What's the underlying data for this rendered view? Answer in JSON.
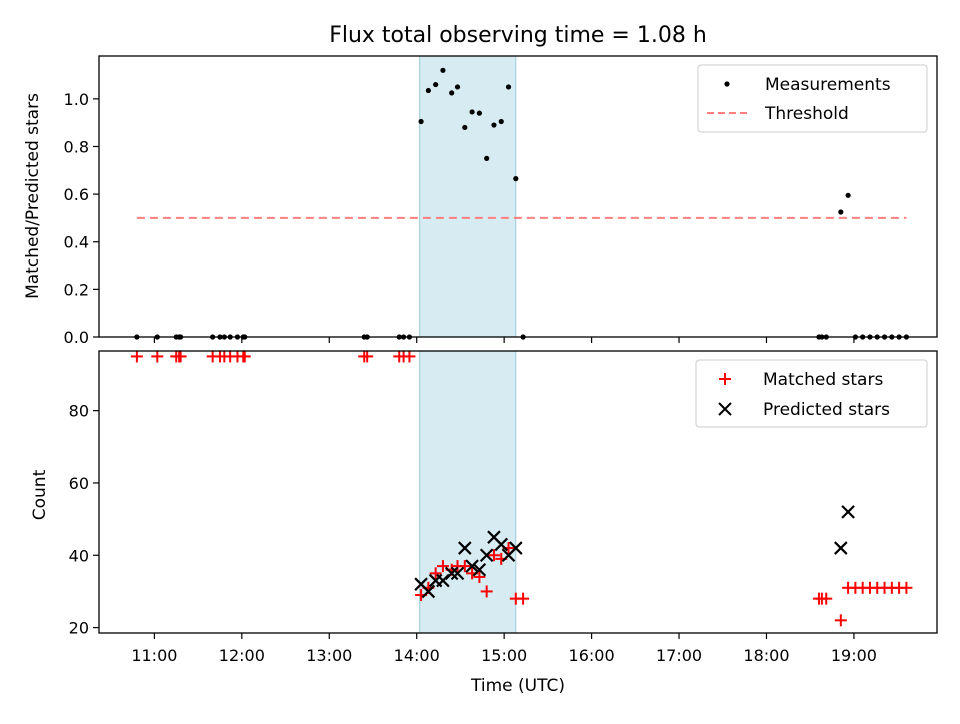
{
  "chart_data": [
    {
      "type": "scatter",
      "title": "Flux total observing time = 1.08 h",
      "xlabel": "",
      "ylabel": "Matched/Predicted stars",
      "xlim": [
        "10:22",
        "19:57"
      ],
      "ylim": [
        0,
        1.18
      ],
      "yticks": [
        0.0,
        0.2,
        0.4,
        0.6,
        0.8,
        1.0
      ],
      "ytick_labels": [
        "0.0",
        "0.2",
        "0.4",
        "0.6",
        "0.8",
        "1.0"
      ],
      "shaded_span": [
        "14:02",
        "15:08"
      ],
      "legend_position": "top-right",
      "series": [
        {
          "name": "Measurements",
          "kind": "points",
          "color": "#000000",
          "x": [
            "10:48",
            "11:02",
            "11:15",
            "11:17",
            "11:18",
            "11:40",
            "11:45",
            "11:48",
            "11:52",
            "11:57",
            "12:01",
            "12:02",
            "13:24",
            "13:26",
            "13:48",
            "13:51",
            "13:55",
            "14:03",
            "14:08",
            "14:13",
            "14:18",
            "14:24",
            "14:28",
            "14:33",
            "14:38",
            "14:43",
            "14:48",
            "14:53",
            "14:58",
            "15:03",
            "15:08",
            "15:13",
            "18:36",
            "18:38",
            "18:41",
            "18:51",
            "18:56",
            "19:01",
            "19:06",
            "19:11",
            "19:16",
            "19:21",
            "19:26",
            "19:31",
            "19:36"
          ],
          "y": [
            0,
            0,
            0,
            0,
            0,
            0,
            0,
            0,
            0,
            0,
            0,
            0,
            0,
            0,
            0,
            0,
            0,
            0.905,
            1.035,
            1.06,
            1.12,
            1.025,
            1.05,
            0.88,
            0.945,
            0.94,
            0.75,
            0.89,
            0.905,
            1.05,
            0.665,
            0,
            0,
            0,
            0,
            0.525,
            0.595,
            0,
            0,
            0,
            0,
            0,
            0,
            0,
            0
          ]
        },
        {
          "name": "Threshold",
          "kind": "dashed-line",
          "color": "#ff7f7f",
          "x": [
            "10:48",
            "19:36"
          ],
          "y": [
            0.5,
            0.5
          ]
        }
      ]
    },
    {
      "type": "scatter",
      "title": "",
      "xlabel": "Time (UTC)",
      "ylabel": "Count",
      "xlim": [
        "10:22",
        "19:57"
      ],
      "ylim": [
        18.5,
        96.5
      ],
      "xticks": [
        "11:00",
        "12:00",
        "13:00",
        "14:00",
        "15:00",
        "16:00",
        "17:00",
        "18:00",
        "19:00"
      ],
      "yticks": [
        20,
        40,
        60,
        80
      ],
      "ytick_labels": [
        "20",
        "40",
        "60",
        "80"
      ],
      "shaded_span": [
        "14:02",
        "15:08"
      ],
      "legend_position": "top-right",
      "series": [
        {
          "name": "Matched stars",
          "marker": "plus",
          "color": "#ff0000",
          "x": [
            "10:48",
            "11:02",
            "11:15",
            "11:17",
            "11:18",
            "11:40",
            "11:45",
            "11:48",
            "11:52",
            "11:57",
            "12:01",
            "12:02",
            "13:24",
            "13:26",
            "13:48",
            "13:51",
            "13:55",
            "14:03",
            "14:08",
            "14:13",
            "14:18",
            "14:24",
            "14:28",
            "14:33",
            "14:38",
            "14:43",
            "14:48",
            "14:53",
            "14:58",
            "15:03",
            "15:08",
            "15:13",
            "18:36",
            "18:38",
            "18:41",
            "18:51",
            "18:56",
            "19:01",
            "19:06",
            "19:11",
            "19:16",
            "19:21",
            "19:26",
            "19:31",
            "19:36"
          ],
          "y": [
            95,
            95,
            95,
            95,
            95,
            95,
            95,
            95,
            95,
            95,
            95,
            95,
            95,
            95,
            95,
            95,
            95,
            29,
            31,
            35,
            37,
            36,
            37,
            37,
            35,
            34,
            30,
            40,
            39,
            42,
            28,
            28,
            28,
            28,
            28,
            22,
            31,
            31,
            31,
            31,
            31,
            31,
            31,
            31,
            31
          ]
        },
        {
          "name": "Predicted stars",
          "marker": "x",
          "color": "#000000",
          "x": [
            "14:03",
            "14:08",
            "14:13",
            "14:18",
            "14:24",
            "14:28",
            "14:33",
            "14:38",
            "14:43",
            "14:48",
            "14:53",
            "14:58",
            "15:03",
            "15:08",
            "18:51",
            "18:56"
          ],
          "y": [
            32,
            30,
            33,
            33,
            35,
            35,
            42,
            37,
            36,
            40,
            45,
            43,
            40,
            42,
            42,
            52
          ]
        }
      ]
    }
  ]
}
